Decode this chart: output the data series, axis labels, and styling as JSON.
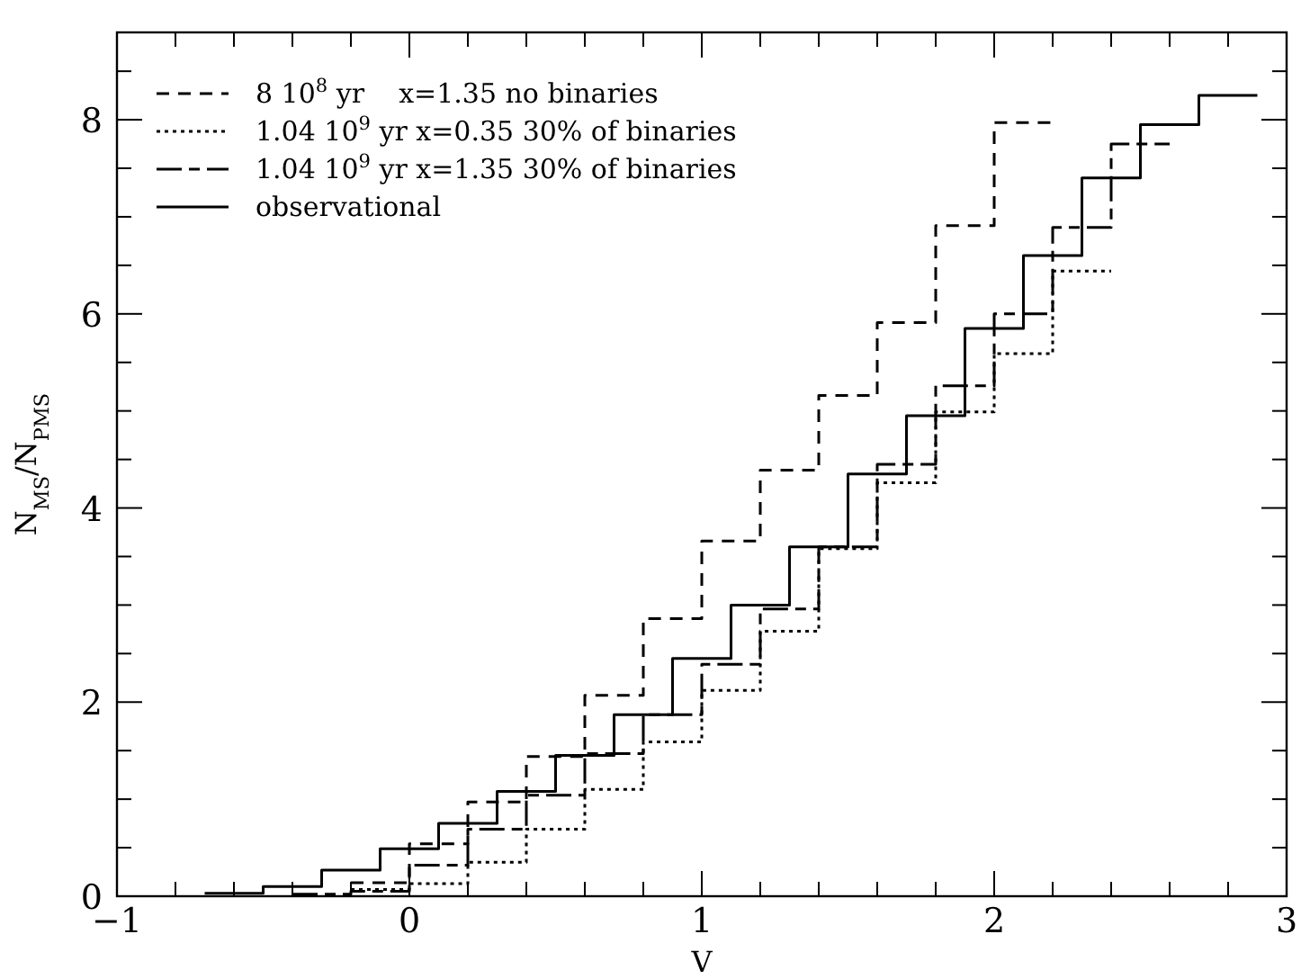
{
  "chart_data": {
    "type": "step",
    "xlabel": "V",
    "ylabel": "N$_{MS}$/N$_{PMS}$",
    "xlim": [
      -1,
      3
    ],
    "ylim": [
      0,
      8.9
    ],
    "xticks": [
      -1,
      {
        "value": -0.8,
        "label": null
      },
      {
        "value": -0.6,
        "label": null
      },
      {
        "value": -0.4,
        "label": null
      },
      {
        "value": -0.2,
        "label": null
      },
      0,
      {
        "value": 0.2,
        "label": null
      },
      {
        "value": 0.4,
        "label": null
      },
      {
        "value": 0.6,
        "label": null
      },
      {
        "value": 0.8,
        "label": null
      },
      1,
      {
        "value": 1.2,
        "label": null
      },
      {
        "value": 1.4,
        "label": null
      },
      {
        "value": 1.6,
        "label": null
      },
      {
        "value": 1.8,
        "label": null
      },
      2,
      {
        "value": 2.2,
        "label": null
      },
      {
        "value": 2.4,
        "label": null
      },
      {
        "value": 2.6,
        "label": null
      },
      {
        "value": 2.8,
        "label": null
      },
      3
    ],
    "yticks": [
      0,
      {
        "value": 0.5,
        "label": null
      },
      {
        "value": 1,
        "label": null
      },
      {
        "value": 1.5,
        "label": null
      },
      2,
      {
        "value": 2.5,
        "label": null
      },
      {
        "value": 3,
        "label": null
      },
      {
        "value": 3.5,
        "label": null
      },
      4,
      {
        "value": 4.5,
        "label": null
      },
      {
        "value": 5,
        "label": null
      },
      {
        "value": 5.5,
        "label": null
      },
      6,
      {
        "value": 6.5,
        "label": null
      },
      {
        "value": 7,
        "label": null
      },
      {
        "value": 7.5,
        "label": null
      },
      8,
      {
        "value": 8.5,
        "label": null
      }
    ],
    "legend": "top left",
    "grid": false,
    "series": [
      {
        "name": "8 10$^{8}$ yr    x=1.35 no binaries",
        "color": "#000000",
        "line_style": "dashed",
        "x": [
          -0.2,
          0,
          0.2,
          0.4,
          0.6,
          0.8,
          1.0,
          1.2,
          1.4,
          1.6,
          1.8,
          2.0,
          2.2
        ],
        "values": [
          0.14,
          0.54,
          0.97,
          1.44,
          2.07,
          2.86,
          3.66,
          4.39,
          5.16,
          5.91,
          6.91,
          7.97,
          7.97
        ]
      },
      {
        "name": "1.04 10$^{9}$ yr x=0.35 30% of binaries",
        "color": "#000000",
        "line_style": "dotted",
        "x": [
          -0.2,
          0,
          0.2,
          0.4,
          0.6,
          0.8,
          1.0,
          1.2,
          1.4,
          1.6,
          1.8,
          2.0,
          2.2,
          2.4
        ],
        "values": [
          0.07,
          0.13,
          0.35,
          0.69,
          1.1,
          1.59,
          2.12,
          2.73,
          3.58,
          4.26,
          4.99,
          5.59,
          6.44,
          6.44
        ]
      },
      {
        "name": "1.04 10$^{9}$ yr x=1.35 30% of binaries",
        "color": "#000000",
        "line_style": "dashed",
        "x": [
          -0.4,
          -0.2,
          0,
          0.2,
          0.4,
          0.6,
          0.8,
          1.0,
          1.2,
          1.4,
          1.6,
          1.8,
          2.0,
          2.2,
          2.4,
          2.6
        ],
        "values": [
          0.02,
          0.05,
          0.32,
          0.69,
          1.04,
          1.47,
          1.87,
          2.39,
          2.96,
          3.6,
          4.45,
          5.26,
          6.0,
          6.89,
          7.75,
          7.75
        ]
      },
      {
        "name": "observational",
        "color": "#000000",
        "line_style": "solid",
        "x": [
          -0.7,
          -0.5,
          -0.3,
          -0.1,
          0.1,
          0.3,
          0.5,
          0.7,
          0.9,
          1.1,
          1.3,
          1.5,
          1.7,
          1.9,
          2.1,
          2.3,
          2.5,
          2.7,
          2.9
        ],
        "values": [
          0.03,
          0.1,
          0.27,
          0.49,
          0.75,
          1.08,
          1.45,
          1.87,
          2.45,
          3.0,
          3.6,
          4.35,
          4.95,
          5.85,
          6.6,
          7.4,
          7.95,
          8.25,
          8.25
        ]
      }
    ]
  }
}
